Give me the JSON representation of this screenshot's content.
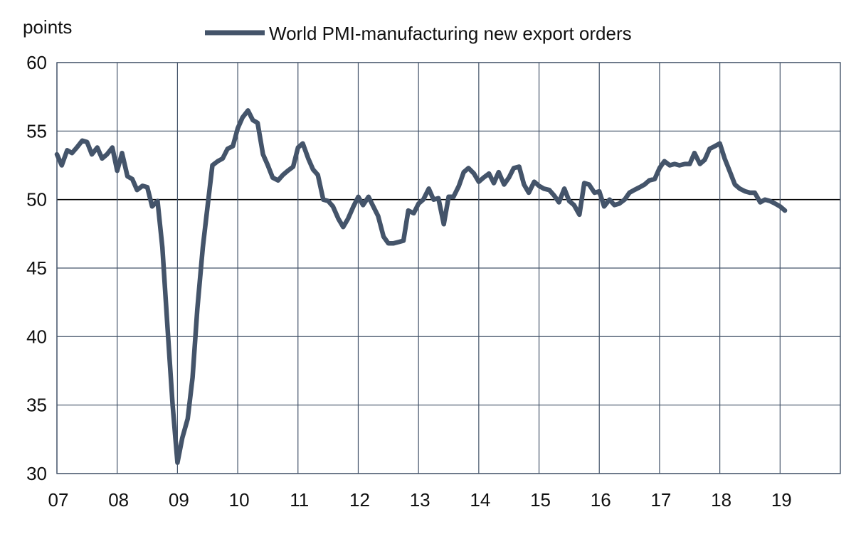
{
  "chart_data": {
    "type": "line",
    "title": "",
    "ylabel": "points",
    "xlabel": "",
    "ylim": [
      30,
      60
    ],
    "y_ticks": [
      "30",
      "35",
      "40",
      "45",
      "50",
      "55",
      "60"
    ],
    "x_ticks": [
      "07",
      "08",
      "09",
      "10",
      "11",
      "12",
      "13",
      "14",
      "15",
      "16",
      "17",
      "18",
      "19"
    ],
    "x_range_years": [
      2007,
      2020
    ],
    "reference_line": 50,
    "grid": true,
    "legend_position": "top",
    "series": [
      {
        "name": "World PMI-manufacturing new export orders",
        "color": "#44546A",
        "x": [
          2007.0,
          2007.08,
          2007.17,
          2007.25,
          2007.33,
          2007.42,
          2007.5,
          2007.58,
          2007.67,
          2007.75,
          2007.83,
          2007.92,
          2008.0,
          2008.08,
          2008.17,
          2008.25,
          2008.33,
          2008.42,
          2008.5,
          2008.58,
          2008.67,
          2008.75,
          2008.83,
          2008.92,
          2009.0,
          2009.08,
          2009.17,
          2009.25,
          2009.33,
          2009.42,
          2009.5,
          2009.58,
          2009.67,
          2009.75,
          2009.83,
          2009.92,
          2010.0,
          2010.08,
          2010.17,
          2010.25,
          2010.33,
          2010.42,
          2010.5,
          2010.58,
          2010.67,
          2010.75,
          2010.83,
          2010.92,
          2011.0,
          2011.08,
          2011.17,
          2011.25,
          2011.33,
          2011.42,
          2011.5,
          2011.58,
          2011.67,
          2011.75,
          2011.83,
          2011.92,
          2012.0,
          2012.08,
          2012.17,
          2012.25,
          2012.33,
          2012.42,
          2012.5,
          2012.58,
          2012.67,
          2012.75,
          2012.83,
          2012.92,
          2013.0,
          2013.08,
          2013.17,
          2013.25,
          2013.33,
          2013.42,
          2013.5,
          2013.58,
          2013.67,
          2013.75,
          2013.83,
          2013.92,
          2014.0,
          2014.08,
          2014.17,
          2014.25,
          2014.33,
          2014.42,
          2014.5,
          2014.58,
          2014.67,
          2014.75,
          2014.83,
          2014.92,
          2015.0,
          2015.08,
          2015.17,
          2015.25,
          2015.33,
          2015.42,
          2015.5,
          2015.58,
          2015.67,
          2015.75,
          2015.83,
          2015.92,
          2016.0,
          2016.08,
          2016.17,
          2016.25,
          2016.33,
          2016.42,
          2016.5,
          2016.58,
          2016.67,
          2016.75,
          2016.83,
          2016.92,
          2017.0,
          2017.08,
          2017.17,
          2017.25,
          2017.33,
          2017.42,
          2017.5,
          2017.58,
          2017.67,
          2017.75,
          2017.83,
          2017.92,
          2018.0,
          2018.08,
          2018.17,
          2018.25,
          2018.33,
          2018.42,
          2018.5,
          2018.58,
          2018.67,
          2018.75,
          2018.83,
          2018.92,
          2019.0,
          2019.08
        ],
        "values": [
          53.3,
          52.5,
          53.6,
          53.4,
          53.8,
          54.3,
          54.2,
          53.3,
          53.8,
          53.0,
          53.3,
          53.8,
          52.1,
          53.4,
          51.7,
          51.5,
          50.7,
          51.0,
          50.9,
          49.5,
          49.9,
          46.5,
          41.0,
          35.0,
          30.8,
          32.6,
          34.0,
          37.0,
          42.0,
          46.5,
          49.5,
          52.5,
          52.8,
          53.0,
          53.7,
          53.9,
          55.2,
          56.0,
          56.5,
          55.8,
          55.6,
          53.3,
          52.5,
          51.6,
          51.4,
          51.8,
          52.1,
          52.4,
          53.8,
          54.1,
          53.0,
          52.2,
          51.8,
          50.0,
          49.9,
          49.5,
          48.6,
          48.0,
          48.6,
          49.5,
          50.2,
          49.6,
          50.2,
          49.5,
          48.8,
          47.3,
          46.8,
          46.8,
          46.9,
          47.0,
          49.2,
          49.0,
          49.7,
          50.0,
          50.8,
          50.0,
          50.1,
          48.2,
          50.2,
          50.2,
          51.0,
          52.0,
          52.3,
          51.9,
          51.3,
          51.6,
          51.9,
          51.2,
          52.0,
          51.1,
          51.6,
          52.3,
          52.4,
          51.1,
          50.5,
          51.3,
          51.0,
          50.8,
          50.7,
          50.3,
          49.8,
          50.8,
          49.9,
          49.6,
          48.9,
          51.2,
          51.1,
          50.5,
          50.6,
          49.5,
          50.0,
          49.6,
          49.7,
          50.0,
          50.5,
          50.7,
          50.9,
          51.1,
          51.4,
          51.5,
          52.3,
          52.8,
          52.5,
          52.6,
          52.5,
          52.6,
          52.6,
          53.4,
          52.6,
          52.9,
          53.7,
          53.9,
          54.1,
          53.0,
          52.0,
          51.1,
          50.8,
          50.6,
          50.5,
          50.5,
          49.8,
          50.0,
          49.9,
          49.7,
          49.5,
          49.2
        ]
      }
    ]
  }
}
